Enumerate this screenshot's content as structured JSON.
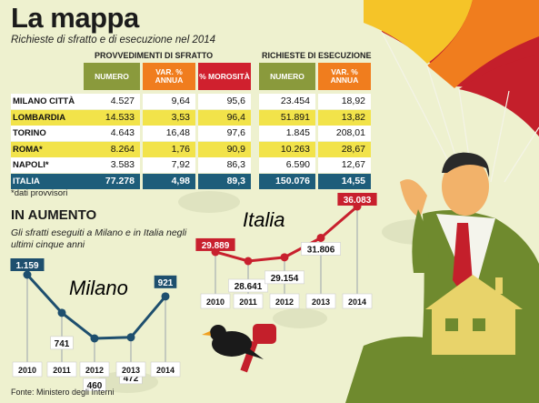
{
  "header": {
    "title": "La mappa",
    "subtitle": "Richieste di sfratto e di esecuzione nel 2014"
  },
  "table": {
    "group_sfratto": "PROVVEDIMENTI DI SFRATTO",
    "group_esecuzione": "RICHIESTE DI ESECUZIONE",
    "col_numero": "NUMERO",
    "col_var": "VAR. % ANNUA",
    "col_morosita": "% MOROSITÀ",
    "col_numero2": "NUMERO",
    "col_var2": "VAR. % ANNUA",
    "rows": [
      {
        "city": "MILANO CITTÀ",
        "numero": "4.527",
        "var": "9,64",
        "morosita": "95,6",
        "numero2": "23.454",
        "var2": "18,92"
      },
      {
        "city": "LOMBARDIA",
        "numero": "14.533",
        "var": "3,53",
        "morosita": "96,4",
        "numero2": "51.891",
        "var2": "13,82"
      },
      {
        "city": "TORINO",
        "numero": "4.643",
        "var": "16,48",
        "morosita": "97,6",
        "numero2": "1.845",
        "var2": "208,01"
      },
      {
        "city": "ROMA*",
        "numero": "8.264",
        "var": "1,76",
        "morosita": "90,9",
        "numero2": "10.263",
        "var2": "28,67"
      },
      {
        "city": "NAPOLI*",
        "numero": "3.583",
        "var": "7,92",
        "morosita": "86,3",
        "numero2": "6.590",
        "var2": "12,67"
      },
      {
        "city": "ITALIA",
        "numero": "77.278",
        "var": "4,98",
        "morosita": "89,3",
        "numero2": "150.076",
        "var2": "14,55"
      }
    ],
    "note": "*dati provvisori"
  },
  "section": {
    "title": "IN AUMENTO",
    "desc": "Gli sfratti eseguiti a Milano e in Italia negli ultimi cinque anni"
  },
  "source": "Fonte: Ministero degli Interni",
  "colors": {
    "orange": "#f07d1e",
    "red": "#d0202e",
    "olive": "#8a9a3c",
    "teal": "#1e5d7a",
    "yellow": "#f2e34a",
    "milano_line": "#1e4f6e",
    "italia_line": "#c8202e",
    "grid_lines": "#9aa2ad"
  },
  "chart_data": [
    {
      "type": "line",
      "title": "Milano",
      "x": [
        "2010",
        "2011",
        "2012",
        "2013",
        "2014"
      ],
      "values": [
        1159,
        741,
        460,
        472,
        921
      ],
      "labels": [
        "1.159",
        "741",
        "460",
        "472",
        "921"
      ]
    },
    {
      "type": "line",
      "title": "Italia",
      "x": [
        "2010",
        "2011",
        "2012",
        "2013",
        "2014"
      ],
      "values": [
        29889,
        28641,
        29154,
        31806,
        36083
      ],
      "labels": [
        "29.889",
        "28.641",
        "29.154",
        "31.806",
        "36.083"
      ]
    }
  ]
}
